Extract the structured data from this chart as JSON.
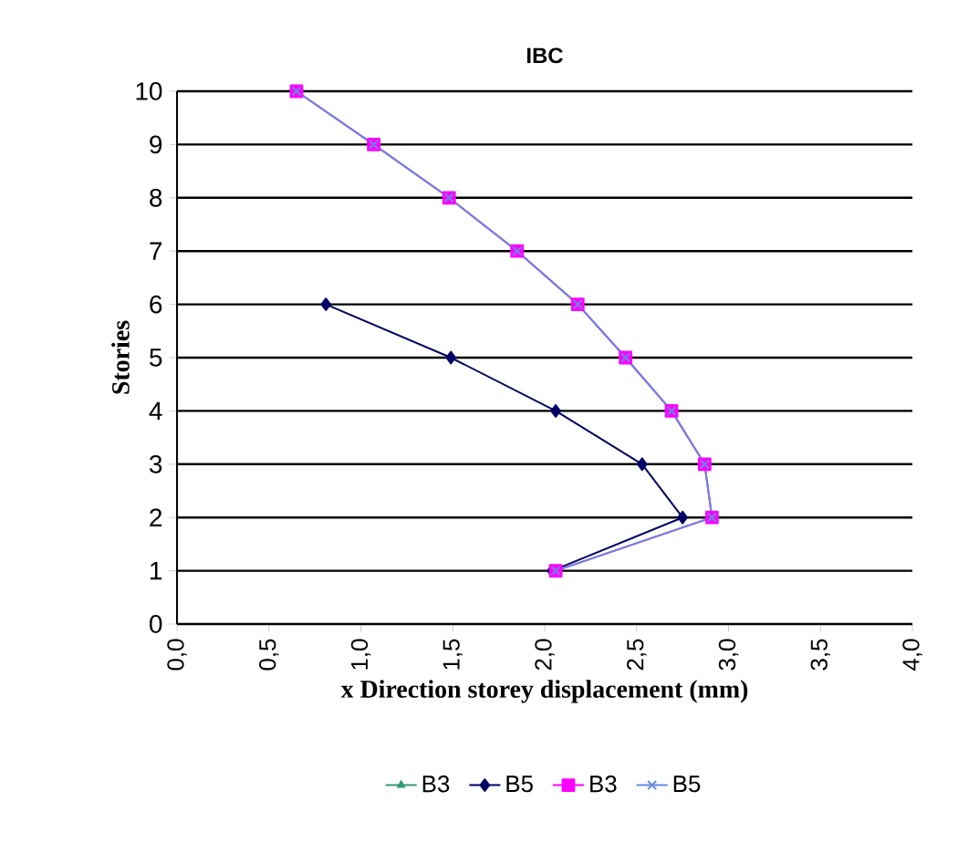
{
  "chart_data": {
    "type": "line",
    "title": "IBC",
    "xlabel": "x Direction storey displacement (mm)",
    "ylabel": "Stories",
    "xlim": [
      0,
      4
    ],
    "xticks": [
      {
        "value": 0,
        "label": "0,0"
      },
      {
        "value": 0.5,
        "label": "0,5"
      },
      {
        "value": 1,
        "label": "1,0"
      },
      {
        "value": 1.5,
        "label": "1,5"
      },
      {
        "value": 2,
        "label": "2,0"
      },
      {
        "value": 2.5,
        "label": "2,5"
      },
      {
        "value": 3,
        "label": "3,0"
      },
      {
        "value": 3.5,
        "label": "3,5"
      },
      {
        "value": 4,
        "label": "4,0"
      }
    ],
    "ylim": [
      0,
      10
    ],
    "yticks": [
      0,
      1,
      2,
      3,
      4,
      5,
      6,
      7,
      8,
      9,
      10
    ],
    "grid": "y",
    "legend": "bottom",
    "series": [
      {
        "name": "B3",
        "color": "#339977",
        "marker": "triangle",
        "x": [
          null,
          null,
          null,
          null,
          null,
          null
        ],
        "values": [
          null,
          null,
          null,
          null,
          null,
          null
        ]
      },
      {
        "name": "B5",
        "color": "#000066",
        "marker": "diamond",
        "x": [
          2.04,
          2.75,
          2.53,
          2.06,
          1.49,
          0.81
        ],
        "values": [
          1,
          2,
          3,
          4,
          5,
          6
        ]
      },
      {
        "name": "B3",
        "color": "#ff00ff",
        "marker": "square",
        "x": [
          2.06,
          2.91,
          2.87,
          2.69,
          2.44,
          2.18,
          1.85,
          1.48,
          1.07,
          0.65
        ],
        "values": [
          1,
          2,
          3,
          4,
          5,
          6,
          7,
          8,
          9,
          10
        ]
      },
      {
        "name": "B5",
        "color": "#6688dd",
        "marker": "cross",
        "x": [
          2.06,
          2.91,
          2.87,
          2.69,
          2.44,
          2.18,
          1.85,
          1.48,
          1.07,
          0.65
        ],
        "values": [
          1,
          2,
          3,
          4,
          5,
          6,
          7,
          8,
          9,
          10
        ]
      }
    ]
  }
}
